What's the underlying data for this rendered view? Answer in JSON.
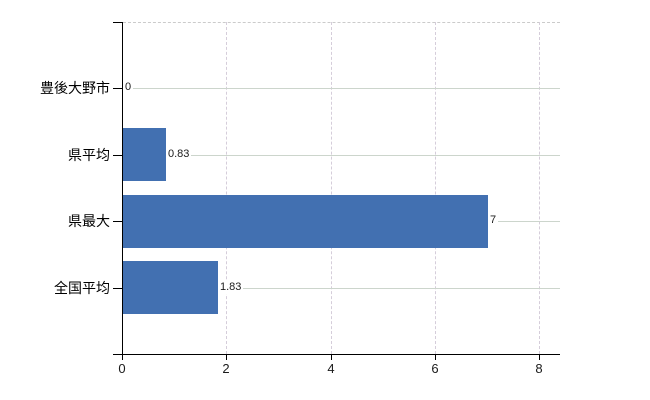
{
  "chart_data": {
    "type": "bar",
    "orientation": "horizontal",
    "title": "",
    "categories": [
      "豊後大野市",
      "県平均",
      "県最大",
      "全国平均"
    ],
    "values": [
      0,
      0.83,
      7,
      1.83
    ],
    "value_labels": [
      "0",
      "0.83",
      "7",
      "1.83"
    ],
    "xticks": [
      0,
      2,
      4,
      6,
      8
    ],
    "xtick_labels": [
      "0",
      "2",
      "4",
      "6",
      "8"
    ],
    "xlim": [
      0,
      8.4
    ],
    "grid": true,
    "legend": false,
    "bar_color": "#4270b1",
    "axis_color": "#000000",
    "h_grid_color": "#ccd5cc",
    "v_grid_color": "#d5cdda",
    "background_color": "#ffffff"
  }
}
